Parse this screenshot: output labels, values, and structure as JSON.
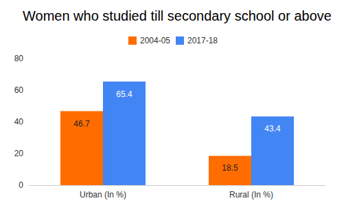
{
  "chart_data": {
    "type": "bar",
    "title": "Women who studied till secondary school or above",
    "categories": [
      "Urban (In %)",
      "Rural (In %)"
    ],
    "series": [
      {
        "name": "2004-05",
        "color": "#ff6d01",
        "values": [
          46.7,
          18.5
        ]
      },
      {
        "name": "2017-18",
        "color": "#4285f4",
        "values": [
          65.4,
          43.4
        ]
      }
    ],
    "ylim": [
      0,
      80
    ],
    "yticks": [
      0,
      20,
      40,
      60,
      80
    ],
    "grid": false,
    "legend": "top",
    "data_labels": true
  }
}
